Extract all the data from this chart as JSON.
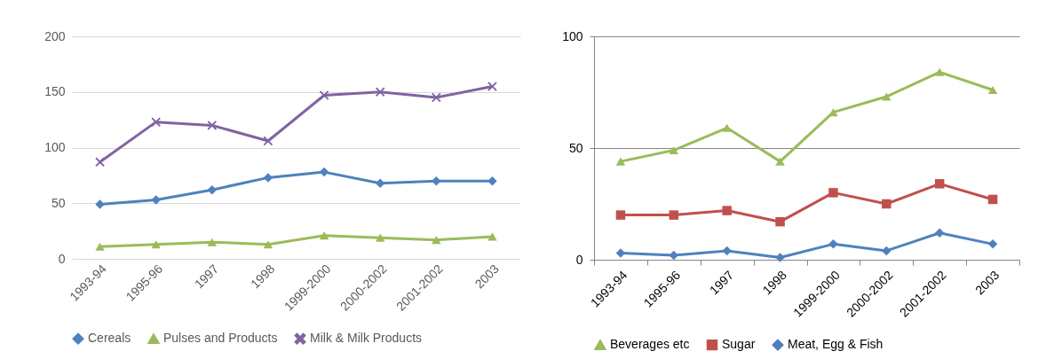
{
  "chart_data": [
    {
      "type": "line",
      "categories": [
        "1993-94",
        "1995-96",
        "1997",
        "1998",
        "1999-2000",
        "2000-2002",
        "2001-2002",
        "2003"
      ],
      "ylim": [
        0,
        200
      ],
      "yticks": [
        0,
        50,
        100,
        150,
        200
      ],
      "grid": "y",
      "legend": "bottom",
      "line_style": "solid",
      "series": [
        {
          "name": "Cereals",
          "color": "#4f81bd",
          "marker": "diamond",
          "values": [
            49,
            53,
            62,
            73,
            78,
            68,
            70,
            70
          ]
        },
        {
          "name": "Pulses and Products",
          "color": "#9bbb59",
          "marker": "triangle",
          "values": [
            11,
            13,
            15,
            13,
            21,
            19,
            17,
            20
          ]
        },
        {
          "name": "Milk & Milk Products",
          "color": "#8064a2",
          "marker": "cross",
          "values": [
            87,
            123,
            120,
            106,
            147,
            150,
            145,
            155
          ]
        }
      ]
    },
    {
      "type": "line",
      "categories": [
        "1993-94",
        "1995-96",
        "1997",
        "1998",
        "1999-2000",
        "2000-2002",
        "2001-2002",
        "2003"
      ],
      "ylim": [
        0,
        100
      ],
      "yticks": [
        0,
        50,
        100
      ],
      "grid": "y",
      "legend": "bottom",
      "line_style": "solid",
      "series": [
        {
          "name": "Beverages etc",
          "color": "#9bbb59",
          "marker": "triangle",
          "values": [
            44,
            49,
            59,
            44,
            66,
            73,
            84,
            76
          ]
        },
        {
          "name": "Sugar",
          "color": "#c0504d",
          "marker": "square",
          "values": [
            20,
            20,
            22,
            17,
            30,
            25,
            34,
            27
          ]
        },
        {
          "name": "Meat, Egg & Fish",
          "color": "#4f81bd",
          "marker": "diamond",
          "values": [
            3,
            2,
            4,
            1,
            7,
            4,
            12,
            7
          ]
        }
      ]
    }
  ]
}
